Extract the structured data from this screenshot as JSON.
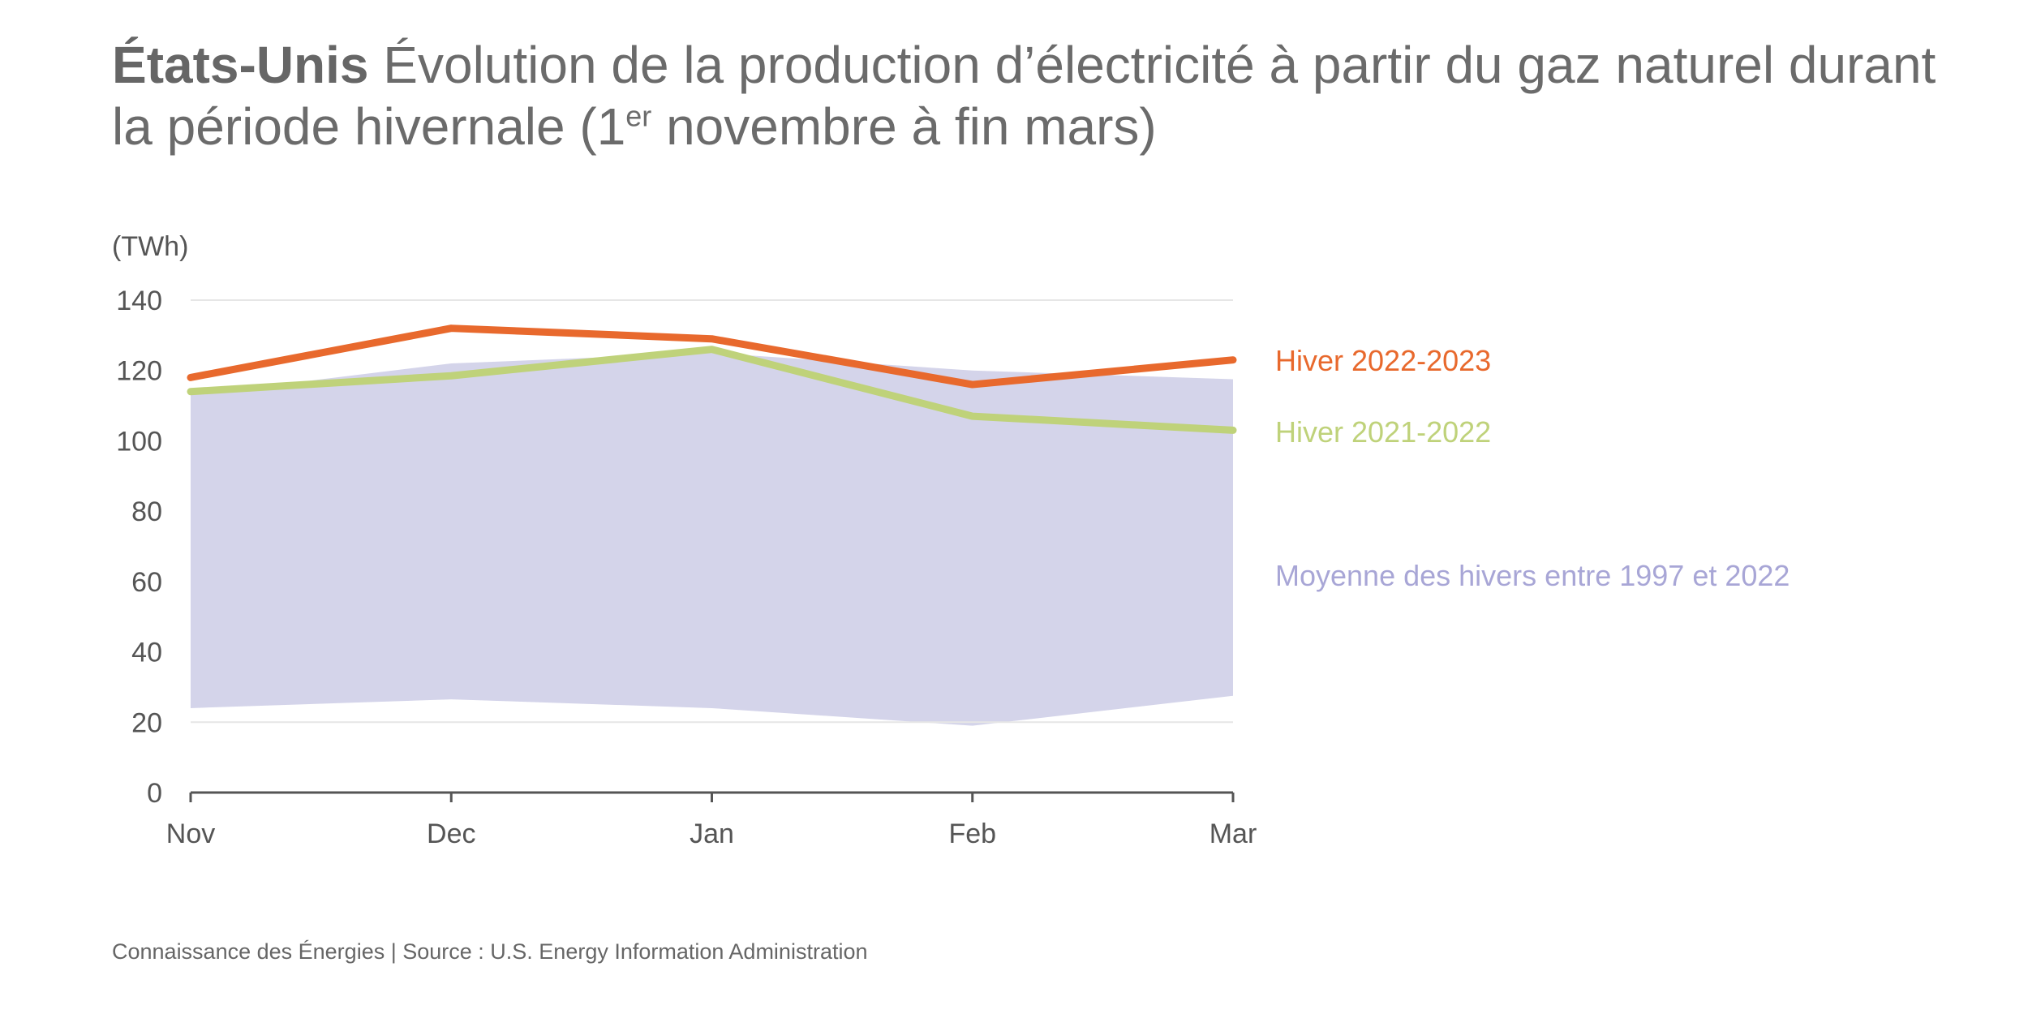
{
  "header": {
    "title_bold": "États-Unis",
    "title_part1": "Évolution de la production d’électricité à partir du gaz naturel durant la période hivernale (1",
    "title_sup": "er",
    "title_part2": " novembre à fin mars)"
  },
  "footer": {
    "source": "Connaissance des Énergies | Source : U.S. Energy Information Administration"
  },
  "colors": {
    "winter_2022_2023": "#e8692d",
    "winter_2021_2022": "#bfd27a",
    "average_band": "#d4d4ea",
    "average_label": "#a8a6d6",
    "axis": "#555555",
    "grid": "#e6e6e6"
  },
  "chart_data": {
    "type": "line",
    "title": "États-Unis Évolution de la production d’électricité à partir du gaz naturel durant la période hivernale (1er novembre à fin mars)",
    "ylabel": "(TWh)",
    "xlabel": "",
    "categories": [
      "Nov",
      "Dec",
      "Jan",
      "Feb",
      "Mar"
    ],
    "ylim": [
      0,
      140
    ],
    "yticks": [
      "0",
      "20",
      "40",
      "60",
      "80",
      "100",
      "120",
      "140"
    ],
    "grid_lines": [
      20,
      140
    ],
    "series": [
      {
        "name": "Hiver 2022-2023",
        "values": [
          118,
          132,
          129,
          116,
          123
        ]
      },
      {
        "name": "Hiver 2021-2022",
        "values": [
          114,
          118.5,
          126,
          107,
          103
        ]
      }
    ],
    "band": {
      "name": "Moyenne des hivers entre 1997 et 2022",
      "lower": [
        24,
        26.5,
        24,
        19,
        27.5
      ],
      "upper": [
        113,
        122,
        125,
        120,
        117.5
      ]
    },
    "legend_placement": "right"
  }
}
